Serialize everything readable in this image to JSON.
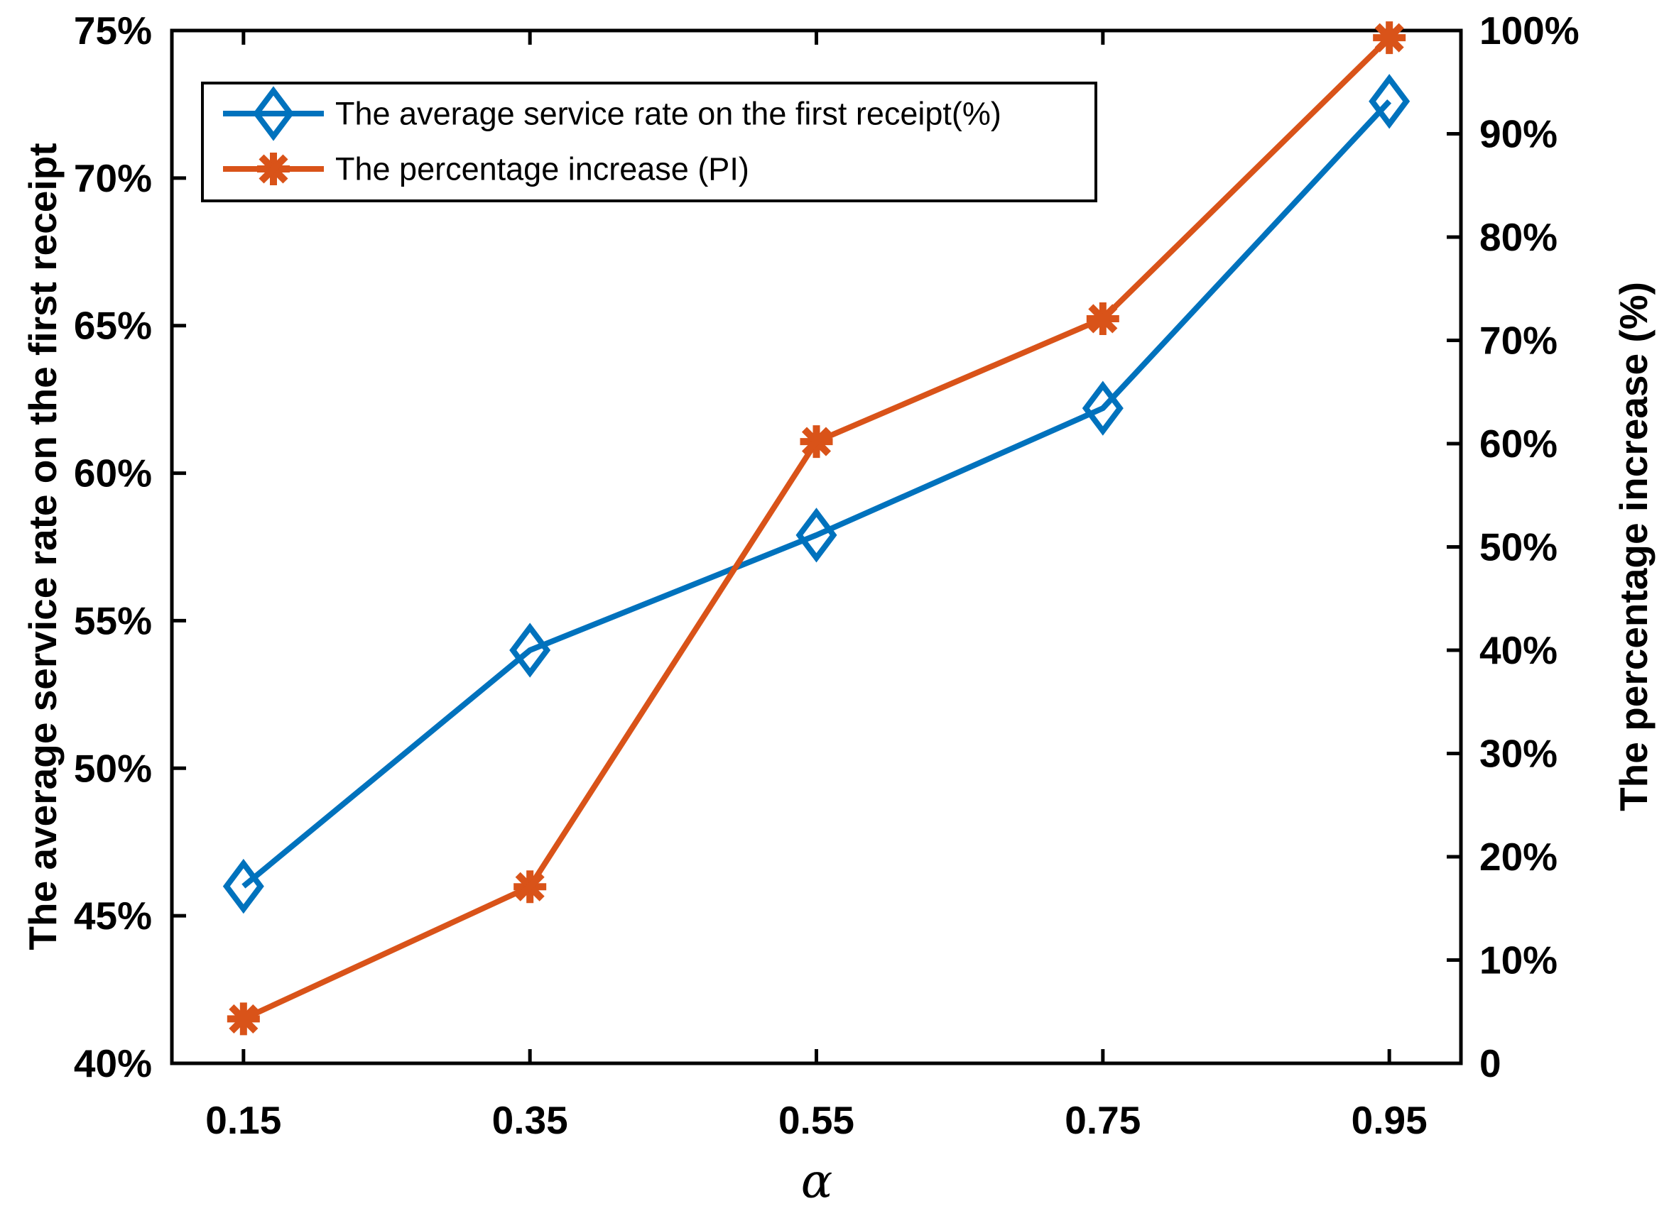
{
  "figure": {
    "background": "#ffffff",
    "axis_color": "#000000"
  },
  "chart_data": {
    "type": "line",
    "x": [
      0.15,
      0.35,
      0.55,
      0.75,
      0.95
    ],
    "x_axis": {
      "label": "α",
      "min": 0.1,
      "max": 1.0,
      "tick_values": [
        0.15,
        0.35,
        0.55,
        0.75,
        0.95
      ],
      "tick_labels": [
        "0.15",
        "0.35",
        "0.55",
        "0.75",
        "0.95"
      ]
    },
    "left_axis": {
      "label": "The average service rate on the first receipt",
      "min": 40,
      "max": 75,
      "tick_values": [
        40,
        45,
        50,
        55,
        60,
        65,
        70,
        75
      ],
      "tick_labels": [
        "40%",
        "45%",
        "50%",
        "55%",
        "60%",
        "65%",
        "70%",
        "75%"
      ]
    },
    "right_axis": {
      "label": "The percentage increase (%)",
      "min": 0,
      "max": 100,
      "tick_values": [
        0,
        10,
        20,
        30,
        40,
        50,
        60,
        70,
        80,
        90,
        100
      ],
      "tick_labels": [
        "0",
        "10%",
        "20%",
        "30%",
        "40%",
        "50%",
        "60%",
        "70%",
        "80%",
        "90%",
        "100%"
      ]
    },
    "series": [
      {
        "name": "The average service rate on the first receipt(%)",
        "axis": "left",
        "color": "#0072BD",
        "marker": "diamond",
        "values": [
          46.0,
          54.0,
          57.9,
          62.2,
          72.6
        ]
      },
      {
        "name": "The percentage increase (PI)",
        "axis": "right",
        "color": "#D95319",
        "marker": "asterisk",
        "values": [
          4.3,
          17.1,
          60.2,
          72.1,
          99.3
        ]
      }
    ],
    "legend": {
      "position": "top-left"
    },
    "grid": false
  }
}
